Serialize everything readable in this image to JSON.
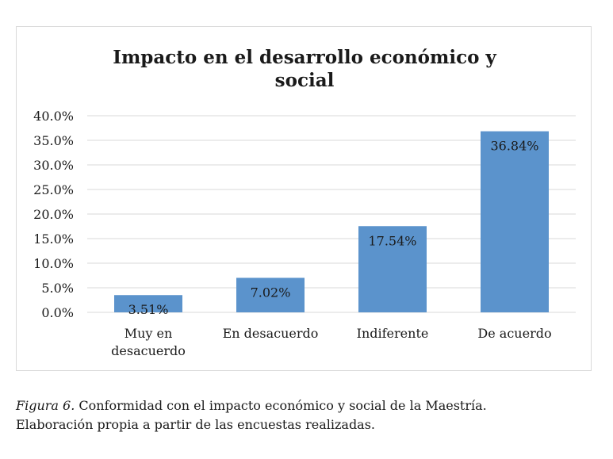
{
  "chart_data": {
    "type": "bar",
    "title": "Impacto en el desarrollo económico y social",
    "title_lines": [
      "Impacto en el desarrollo económico y",
      "social"
    ],
    "categories": [
      "Muy en desacuerdo",
      "En desacuerdo",
      "Indiferente",
      "De acuerdo"
    ],
    "category_lines": [
      [
        "Muy en",
        "desacuerdo"
      ],
      [
        "En desacuerdo"
      ],
      [
        "Indiferente"
      ],
      [
        "De acuerdo"
      ]
    ],
    "values": [
      3.51,
      7.02,
      17.54,
      36.84
    ],
    "data_labels": [
      "3.51%",
      "7.02%",
      "17.54%",
      "36.84%"
    ],
    "ylim": [
      0,
      40
    ],
    "yticks": [
      0,
      5,
      10,
      15,
      20,
      25,
      30,
      35,
      40
    ],
    "ytick_labels": [
      "0.0%",
      "5.0%",
      "10.0%",
      "15.0%",
      "20.0%",
      "25.0%",
      "30.0%",
      "35.0%",
      "40.0%"
    ],
    "grid": true,
    "legend": "none",
    "bar_color": "#5b93cc",
    "grid_color": "#d9d9d9"
  },
  "caption": {
    "figure_label": "Figura 6.",
    "line1": " Conformidad con el impacto económico y social de la Maestría.",
    "line2": "Elaboración propia a partir de las encuestas realizadas."
  }
}
